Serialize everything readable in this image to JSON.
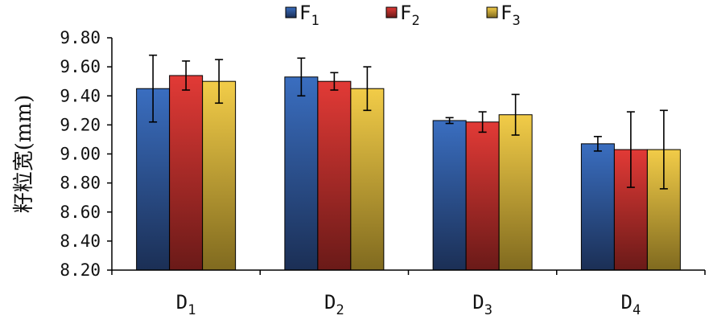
{
  "chart_data": {
    "type": "bar",
    "title": "",
    "xlabel": "",
    "ylabel": "籽粒宽(mm)",
    "ylim": [
      8.2,
      9.8
    ],
    "yticks": [
      "8.20",
      "8.40",
      "8.60",
      "8.80",
      "9.00",
      "9.20",
      "9.40",
      "9.60",
      "9.80"
    ],
    "categories": [
      {
        "main": "D",
        "sub": "1"
      },
      {
        "main": "D",
        "sub": "2"
      },
      {
        "main": "D",
        "sub": "3"
      },
      {
        "main": "D",
        "sub": "4"
      }
    ],
    "legend_position": "top",
    "grid": false,
    "error_bars": true,
    "series": [
      {
        "name": "F",
        "sub": "1",
        "color_top": "#3a6ec0",
        "color_bottom": "#1b2f55",
        "values": [
          9.45,
          9.53,
          9.23,
          9.07
        ],
        "errors": [
          0.23,
          0.13,
          0.02,
          0.05
        ]
      },
      {
        "name": "F",
        "sub": "2",
        "color_top": "#e23a36",
        "color_bottom": "#6a1a18",
        "values": [
          9.54,
          9.5,
          9.22,
          9.03
        ],
        "errors": [
          0.1,
          0.06,
          0.07,
          0.26
        ]
      },
      {
        "name": "F",
        "sub": "3",
        "color_top": "#f2cc48",
        "color_bottom": "#806a1f",
        "values": [
          9.5,
          9.45,
          9.27,
          9.03
        ],
        "errors": [
          0.15,
          0.15,
          0.14,
          0.27
        ]
      }
    ]
  }
}
